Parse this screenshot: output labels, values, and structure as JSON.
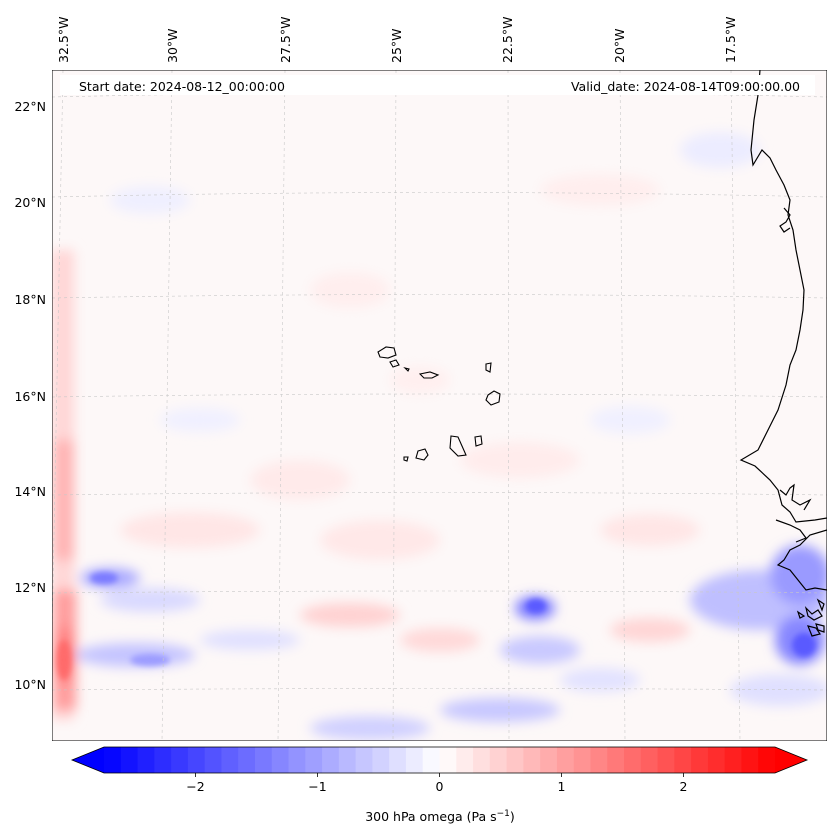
{
  "map": {
    "start_date": "Start date: 2024-08-12_00:00:00",
    "valid_date": "Valid_date: 2024-08-14T09:00:00.00",
    "lon_labels": [
      "32.5°W",
      "30°W",
      "27.5°W",
      "25°W",
      "22.5°W",
      "20°W",
      "17.5°W"
    ],
    "lat_labels": [
      "22°N",
      "20°N",
      "18°N",
      "16°N",
      "14°N",
      "12°N",
      "10°N"
    ],
    "variable": "300 hPa omega"
  },
  "colorbar": {
    "label": "300 hPa omega (Pa s",
    "label_sup": "−1",
    "label_end": ")",
    "tick_labels": [
      "−2",
      "−1",
      "0",
      "1",
      "2"
    ],
    "tick_values": [
      -2,
      -1,
      0,
      1,
      2
    ],
    "range": [
      -2.75,
      2.75
    ],
    "low_color": "#0000ff",
    "high_color": "#ff0000",
    "mid_color": "#ffffff"
  },
  "colors": {
    "coastline": "#000000",
    "gridline": "#c8c8c8"
  }
}
